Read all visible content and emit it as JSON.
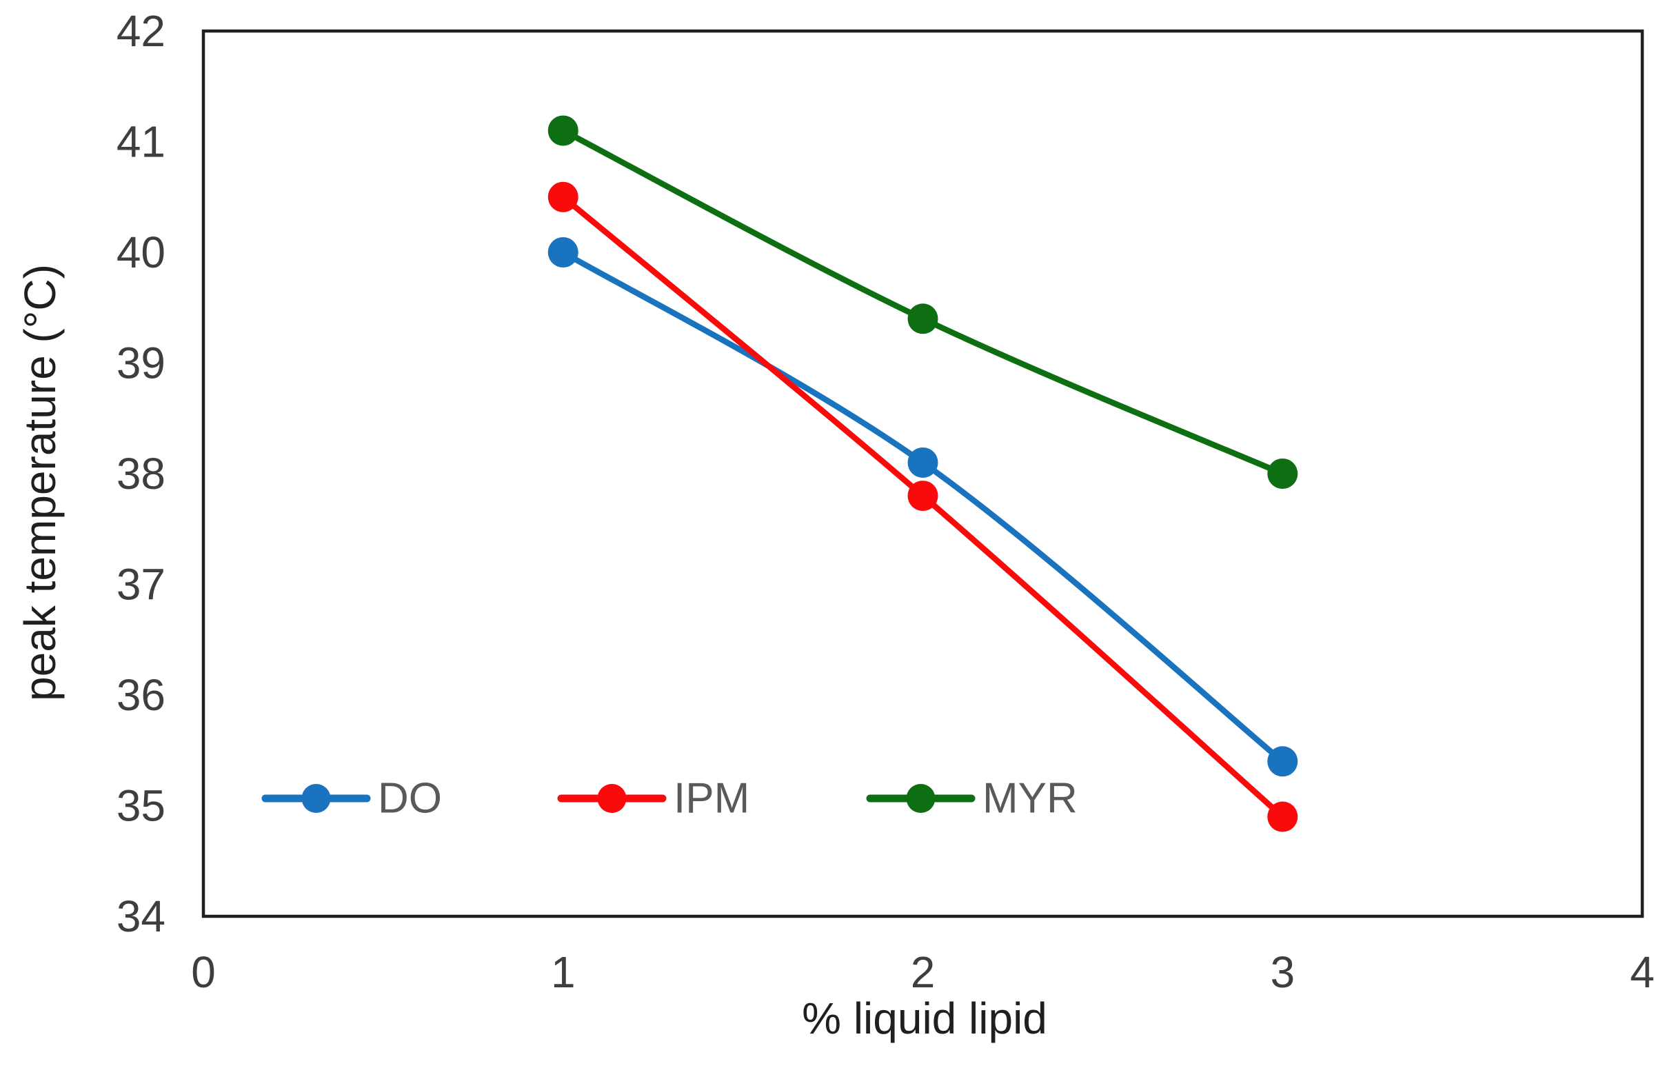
{
  "chart_data": {
    "type": "line",
    "title": "",
    "xlabel": "% liquid lipid",
    "ylabel": "peak temperature (°C)",
    "x": [
      1,
      2,
      3
    ],
    "series": [
      {
        "name": "DO",
        "color": "#1973BE",
        "values": [
          40.0,
          38.1,
          35.4
        ]
      },
      {
        "name": "IPM",
        "color": "#FA0A0A",
        "values": [
          40.5,
          37.8,
          34.9
        ]
      },
      {
        "name": "MYR",
        "color": "#0E6E12",
        "values": [
          41.1,
          39.4,
          38.0
        ]
      }
    ],
    "x_ticks": [
      "0",
      "1",
      "2",
      "3",
      "4"
    ],
    "y_ticks": [
      "34",
      "35",
      "36",
      "37",
      "38",
      "39",
      "40",
      "41",
      "42"
    ],
    "xlim": [
      0,
      4
    ],
    "ylim": [
      34,
      42
    ],
    "grid": false,
    "legend_position": "inside-bottom-left",
    "marker": "circle",
    "frame_color": "#1f1f1f",
    "tick_text_color": "#3e3e3e",
    "legend_text_color": "#595959"
  }
}
